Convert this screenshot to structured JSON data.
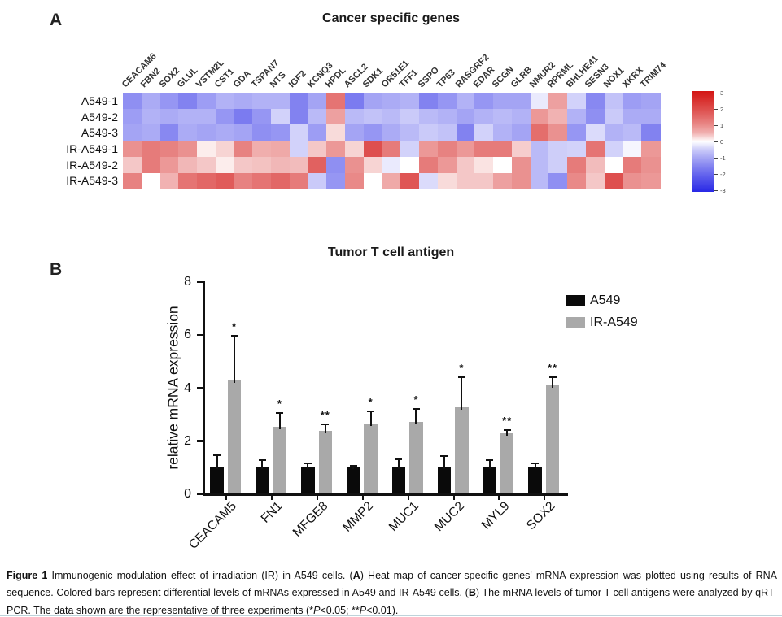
{
  "panels": {
    "a": "A",
    "b": "B"
  },
  "colors": {
    "bar_black": "#0a0a0a",
    "bar_gray": "#a9a9a9",
    "heat_max_color": "#d31614",
    "heat_min_color": "#2828e6",
    "heat_mid_color": "#ffffff",
    "divider_teal": "#46828f"
  },
  "chart_data": [
    {
      "type": "heatmap",
      "title": "Cancer specific genes",
      "columns": [
        "CEACAM6",
        "FBN2",
        "SOX2",
        "GLUL",
        "VSTM2L",
        "CST1",
        "GDA",
        "TSPAN7",
        "NTS",
        "IGF2",
        "KCNQ3",
        "HPDL",
        "ASCL2",
        "SDK1",
        "OR51E1",
        "TFF1",
        "SSPO",
        "TP63",
        "RASGRF2",
        "EDAR",
        "SCGN",
        "GLRB",
        "NMUR2",
        "RPRML",
        "BHLHE41",
        "SESN3",
        "NOX1",
        "XKRX",
        "TRIM74"
      ],
      "rows": [
        "A549-1",
        "A549-2",
        "A549-3",
        "IR-A549-1",
        "IR-A549-2",
        "IR-A549-3"
      ],
      "values": [
        [
          -1.3,
          -0.9,
          -1.2,
          -1.5,
          -1.1,
          -0.8,
          -0.9,
          -0.8,
          -0.8,
          -1.5,
          -1.0,
          1.3,
          -1.6,
          -1.0,
          -0.9,
          -0.8,
          -1.5,
          -1.2,
          -0.8,
          -1.2,
          -1.0,
          -1.0,
          -0.15,
          0.7,
          -0.4,
          -1.4,
          -0.6,
          -1.1,
          -1.0
        ],
        [
          -1.1,
          -0.8,
          -0.9,
          -0.8,
          -0.8,
          -1.2,
          -1.6,
          -1.2,
          -0.4,
          -1.5,
          -0.7,
          0.7,
          -0.7,
          -0.6,
          -0.7,
          -0.5,
          -0.7,
          -0.8,
          -1.0,
          -0.8,
          -0.7,
          -0.8,
          0.8,
          0.5,
          -0.8,
          -1.3,
          -0.5,
          -0.9,
          -0.9
        ],
        [
          -1.0,
          -0.9,
          -1.4,
          -0.9,
          -1.0,
          -0.9,
          -1.0,
          -1.3,
          -1.2,
          -0.4,
          -1.1,
          0.15,
          -1.0,
          -1.2,
          -0.9,
          -0.7,
          -0.5,
          -0.6,
          -1.5,
          -0.4,
          -0.8,
          -1.0,
          1.4,
          0.9,
          -1.2,
          -0.3,
          -0.8,
          -0.7,
          -1.5
        ],
        [
          0.9,
          1.2,
          1.1,
          0.9,
          0.05,
          0.2,
          1.1,
          0.55,
          0.6,
          -0.4,
          0.3,
          0.8,
          0.2,
          1.9,
          1.2,
          -0.4,
          0.8,
          1.1,
          0.8,
          1.2,
          1.2,
          0.25,
          -0.7,
          -0.45,
          -0.4,
          1.3,
          -0.4,
          -0.05,
          0.8
        ],
        [
          0.3,
          1.2,
          0.8,
          0.45,
          0.3,
          0.05,
          0.3,
          0.35,
          0.45,
          0.4,
          1.6,
          -1.3,
          0.9,
          0.2,
          -0.15,
          0.0,
          1.2,
          0.8,
          0.3,
          0.1,
          0.0,
          0.9,
          -0.7,
          -0.45,
          1.2,
          0.4,
          0.0,
          1.2,
          0.9
        ],
        [
          1.1,
          0.0,
          0.5,
          1.3,
          1.5,
          1.7,
          1.1,
          1.3,
          1.5,
          1.2,
          -0.5,
          -1.2,
          1.0,
          0.0,
          0.6,
          1.8,
          -0.3,
          0.15,
          0.3,
          0.3,
          0.7,
          0.9,
          -0.7,
          -1.3,
          1.0,
          0.3,
          1.9,
          0.9,
          0.8
        ]
      ],
      "vmin": -3,
      "vmax": 3,
      "colorbar_ticks": [
        "3",
        "2",
        "1",
        "0",
        "-1",
        "-2",
        "-3"
      ]
    },
    {
      "type": "bar",
      "title": "Tumor T cell antigen",
      "categories": [
        "CEACAM5",
        "FN1",
        "MFGE8",
        "MMP2",
        "MUC1",
        "MUC2",
        "MYL9",
        "SOX2"
      ],
      "series": [
        {
          "name": "A549",
          "values": [
            1.0,
            1.0,
            1.0,
            1.0,
            1.0,
            1.0,
            1.0,
            1.0
          ],
          "errors": [
            0.45,
            0.25,
            0.13,
            0.05,
            0.28,
            0.42,
            0.25,
            0.14
          ]
        },
        {
          "name": "IR-A549",
          "values": [
            4.27,
            2.52,
            2.37,
            2.65,
            2.7,
            3.26,
            2.28,
            4.08
          ],
          "errors": [
            1.68,
            0.5,
            0.25,
            0.45,
            0.5,
            1.12,
            0.12,
            0.3
          ]
        }
      ],
      "significance": [
        "*",
        "*",
        "**",
        "*",
        "*",
        "*",
        "**",
        "**"
      ],
      "ylabel": "relative mRNA expression",
      "ylim": [
        0,
        8
      ],
      "yticks": [
        "0",
        "2",
        "4",
        "6",
        "8"
      ],
      "legend": [
        "A549",
        "IR-A549"
      ]
    }
  ],
  "caption": {
    "segments": [
      {
        "text": "Figure 1 ",
        "bold": true
      },
      {
        "text": "Immunogenic modulation effect of irradiation (IR) in A549 cells. ("
      },
      {
        "text": "A",
        "bold": true
      },
      {
        "text": ") Heat map of cancer-specific genes' mRNA expression was plotted using results of RNA sequence. Colored bars represent differential levels of mRNAs expressed in A549 and IR-A549 cells. ("
      },
      {
        "text": "B",
        "bold": true
      },
      {
        "text": ") The mRNA levels of tumor T cell antigens were analyzed by qRT-PCR. The data shown are the representative of three experiments (*"
      },
      {
        "text": "P",
        "italic": true
      },
      {
        "text": "<0.05; **"
      },
      {
        "text": "P",
        "italic": true
      },
      {
        "text": "<0.01)."
      }
    ]
  }
}
